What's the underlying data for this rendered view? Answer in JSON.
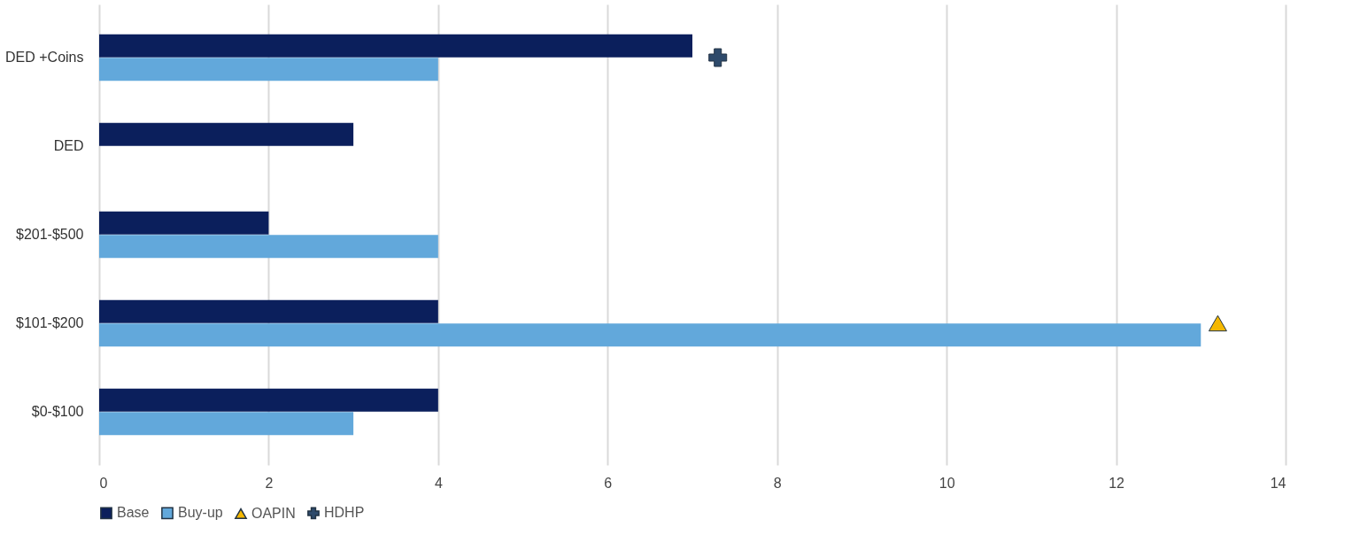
{
  "chart_data": {
    "type": "bar",
    "orientation": "horizontal",
    "categories": [
      "DED +Coins",
      "DED",
      "$201-$500",
      "$101-$200",
      "$0-$100"
    ],
    "series": [
      {
        "name": "Base",
        "color": "#0b1f5c",
        "values": [
          7,
          3,
          2,
          4,
          4
        ]
      },
      {
        "name": "Buy-up",
        "color": "#62a8db",
        "values": [
          4,
          0,
          4,
          13,
          3
        ]
      },
      {
        "name": "OAPIN",
        "type": "scatter",
        "marker": "triangle",
        "color": "#f5b800",
        "values": [
          null,
          null,
          null,
          13.2,
          null
        ]
      },
      {
        "name": "HDHP",
        "type": "scatter",
        "marker": "cross",
        "color": "#2e4a6b",
        "values": [
          7.3,
          null,
          null,
          null,
          null
        ]
      }
    ],
    "xlim": [
      0,
      14
    ],
    "xticks": [
      0,
      2,
      4,
      6,
      8,
      10,
      12,
      14
    ],
    "grid": "x",
    "legend": "bottom"
  }
}
